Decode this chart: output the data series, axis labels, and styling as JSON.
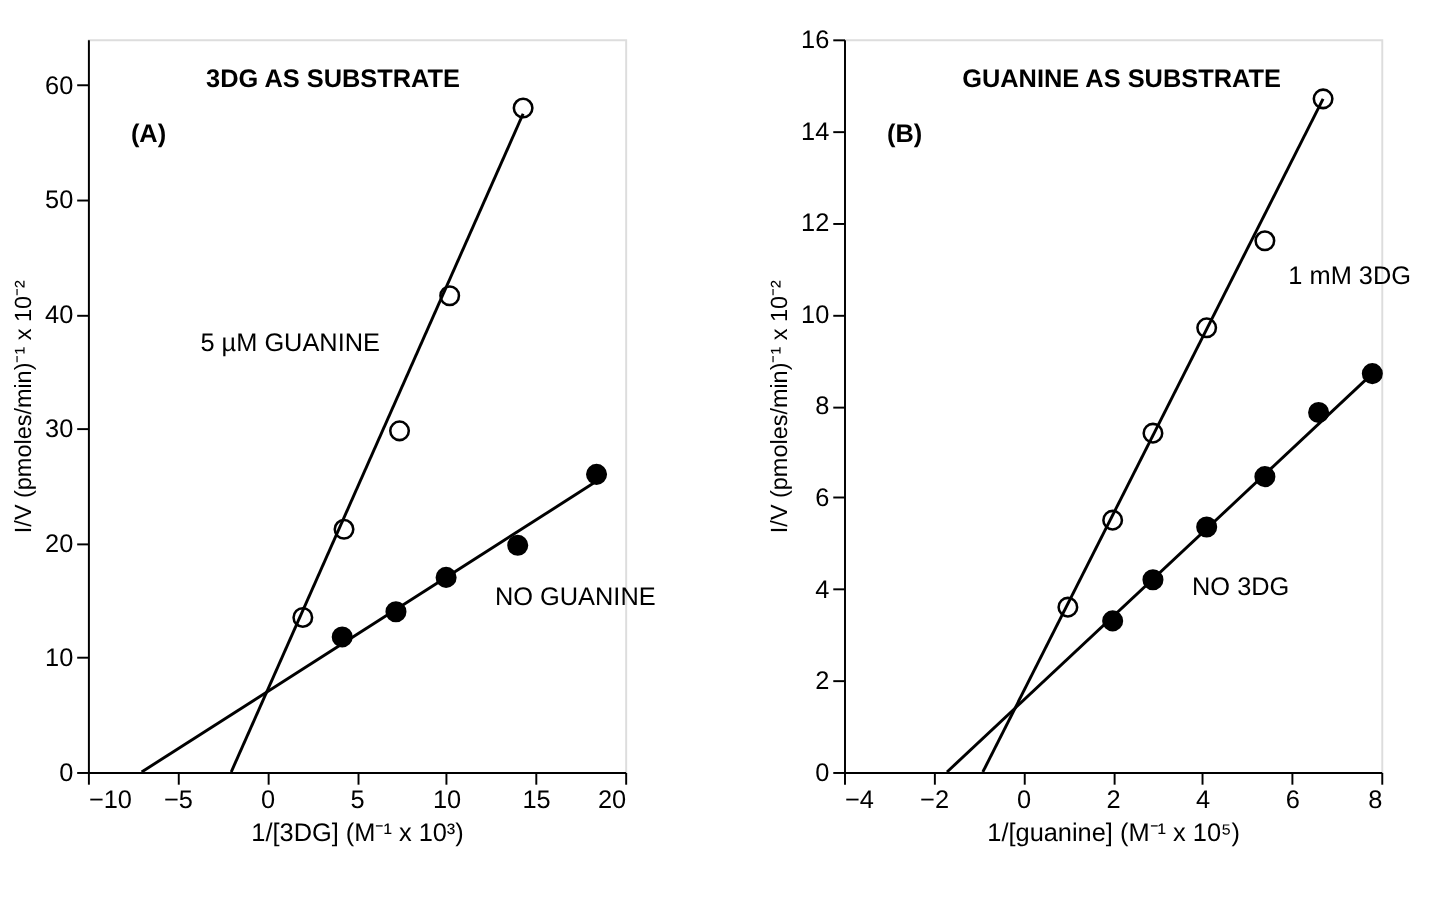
{
  "chart_data": [
    {
      "type": "scatter",
      "xlabel": "1/[3DG]  (M⁻¹ x 10³)",
      "ylabel": "I/V (pmoles/min)⁻¹ x 10⁻²",
      "annotations": [
        "3DG AS SUBSTRATE",
        "(A)"
      ],
      "xlim": [
        -10,
        20
      ],
      "ylim": [
        0,
        64
      ],
      "xticks": [
        -10,
        -5,
        0,
        5,
        10,
        15,
        20
      ],
      "yticks": [
        0,
        10,
        20,
        30,
        40,
        50,
        60
      ],
      "grid": false,
      "legend": false,
      "marker": "circle",
      "series": [
        {
          "name": "5 µM  GUANINE",
          "color": "#000000",
          "x": [
            2,
            4.3,
            7.4,
            10.2,
            14.3
          ],
          "values": [
            13.5,
            21.2,
            29.8,
            41.6,
            58
          ]
        },
        {
          "name": "NO GUANINE",
          "color": "#000000",
          "x": [
            4.2,
            7.2,
            10,
            14,
            18.4
          ],
          "values": [
            11.8,
            14,
            17,
            19.8,
            26
          ]
        },
        {
          "color": "#000000",
          "type": "line",
          "marker": "none",
          "line_style": "solid",
          "x": [
            -2,
            14.3
          ],
          "values": [
            0,
            57.5
          ]
        },
        {
          "color": "#000000",
          "type": "line",
          "marker": "none",
          "line_style": "solid",
          "x": [
            -7,
            18.5
          ],
          "values": [
            0,
            25.5
          ]
        }
      ]
    },
    {
      "type": "scatter",
      "xlabel": "1/[guanine]  (M⁻¹ x 10⁵)",
      "ylabel": "I/V (pmoles/min)⁻¹ x 10⁻²",
      "annotations": [
        "GUANINE AS SUBSTRATE",
        "(B)"
      ],
      "xlim": [
        -4,
        8
      ],
      "ylim": [
        0,
        16
      ],
      "xticks": [
        -4,
        -2,
        0,
        2,
        4,
        6,
        8
      ],
      "yticks": [
        0,
        2,
        4,
        6,
        8,
        10,
        12,
        14,
        16
      ],
      "grid": false,
      "legend": false,
      "marker": "circle",
      "series": [
        {
          "name": "1 mM 3DG",
          "color": "#000000",
          "x": [
            1,
            2,
            2.9,
            4.1,
            5.4,
            6.7
          ],
          "values": [
            3.6,
            5.5,
            7.4,
            9.7,
            11.6,
            14.7
          ]
        },
        {
          "name": "NO 3DG",
          "color": "#000000",
          "x": [
            2,
            2.9,
            4.1,
            5.4,
            6.6,
            7.8
          ],
          "values": [
            3.3,
            4.2,
            5.35,
            6.45,
            7.85,
            8.7
          ]
        },
        {
          "color": "#000000",
          "type": "line",
          "marker": "none",
          "line_style": "solid",
          "x": [
            -0.9,
            6.7
          ],
          "values": [
            0,
            14.7
          ]
        },
        {
          "color": "#000000",
          "type": "line",
          "marker": "none",
          "line_style": "solid",
          "x": [
            -1.7,
            7.8
          ],
          "values": [
            0,
            8.7
          ]
        }
      ]
    }
  ]
}
